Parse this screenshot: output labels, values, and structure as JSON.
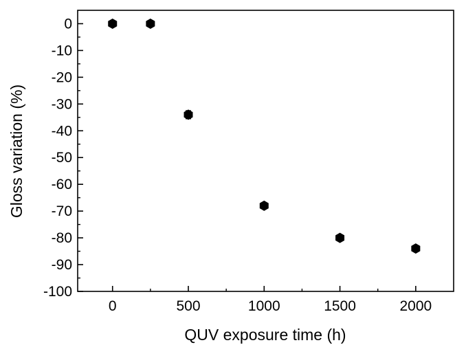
{
  "chart_data": {
    "type": "scatter",
    "title": "",
    "xlabel": "QUV exposure time (h)",
    "ylabel": "Gloss variation (%)",
    "xlim": [
      -230,
      2250
    ],
    "ylim": [
      -100,
      5
    ],
    "x_ticks": [
      0,
      500,
      1000,
      1500,
      2000
    ],
    "y_ticks": [
      0,
      -10,
      -20,
      -30,
      -40,
      -50,
      -60,
      -70,
      -80,
      -90,
      -100
    ],
    "marker": "hexagon",
    "marker_color": "#000000",
    "grid": false,
    "legend": "none",
    "series": [
      {
        "x": [
          0,
          250,
          500,
          1000,
          1500,
          2000
        ],
        "y": [
          0,
          0,
          -34,
          -68,
          -80,
          -84
        ],
        "y_error": [
          0.5,
          1.2,
          1.5,
          0.8,
          0.8,
          0.8
        ]
      }
    ]
  }
}
